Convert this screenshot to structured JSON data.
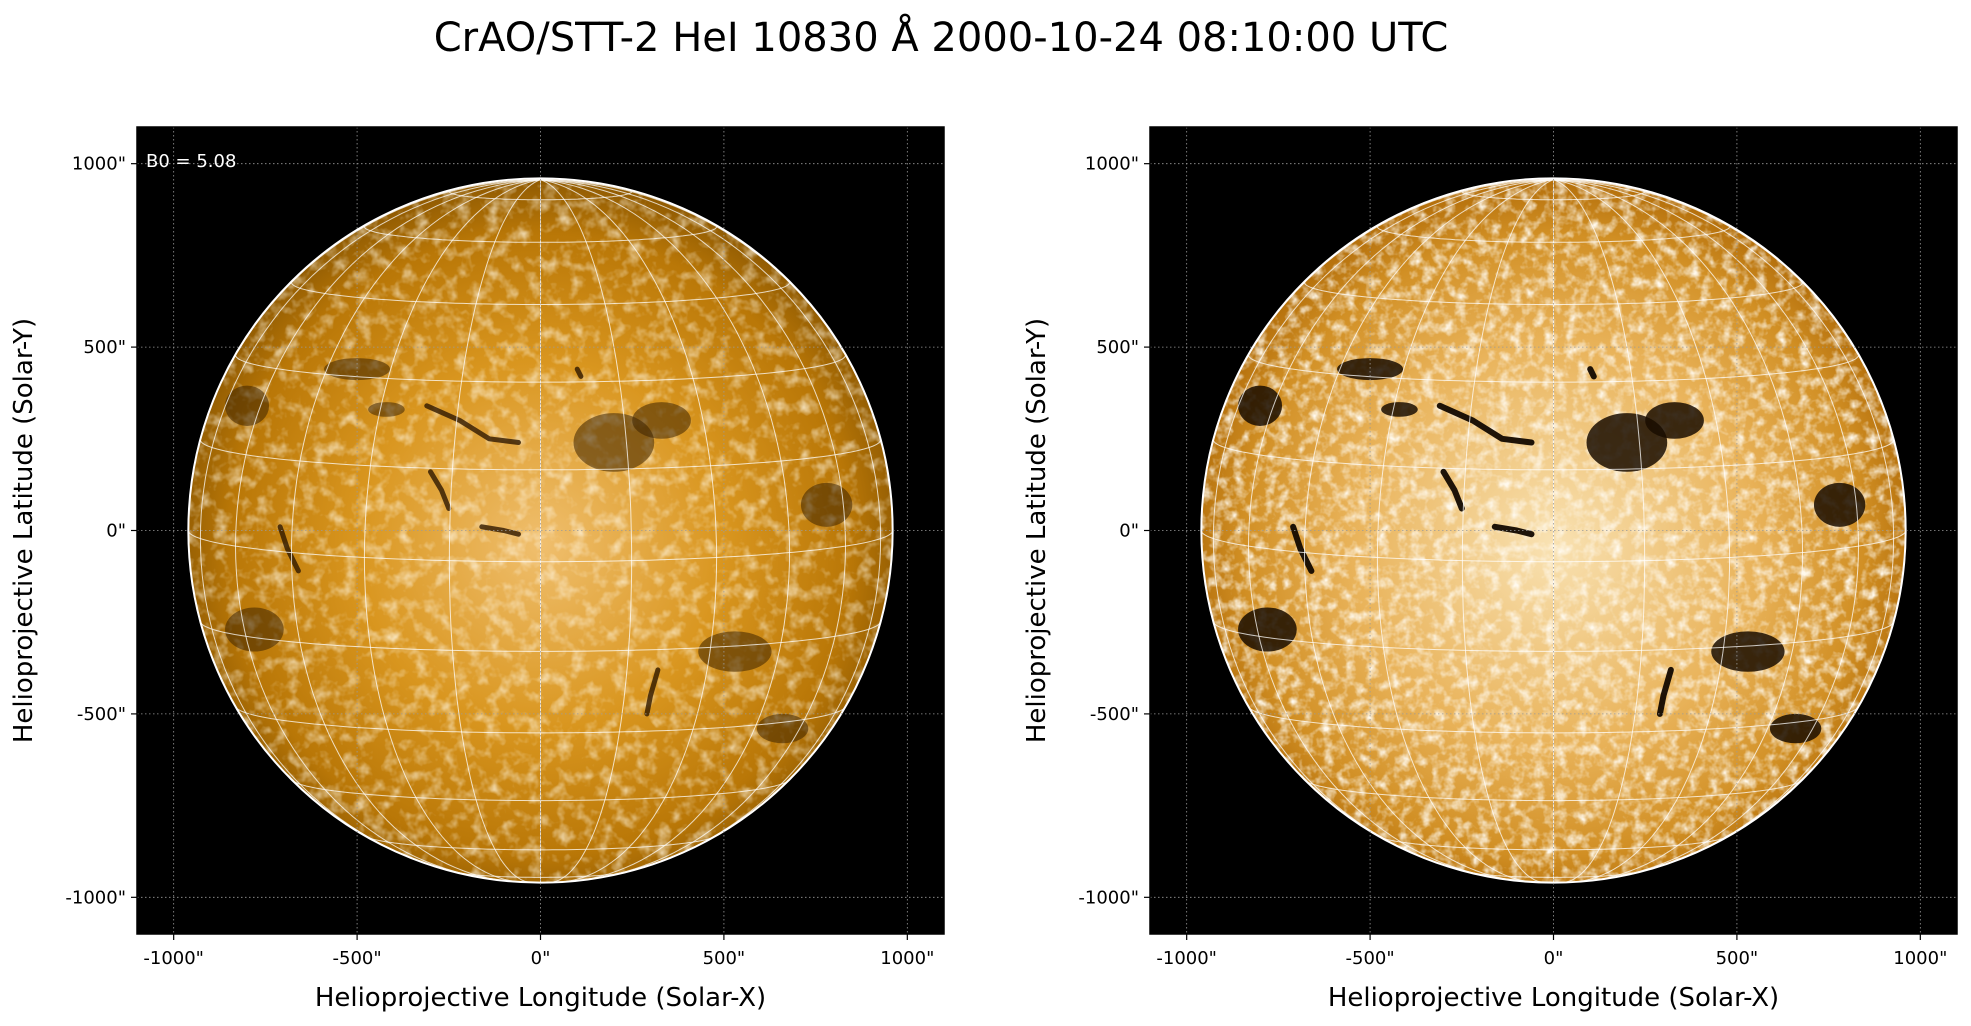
{
  "title": "CrAO/STT-2 HeI 10830 Å 2000-10-24 08:10:00 UTC",
  "colors": {
    "background": "#000000",
    "disk_mid": "#c8800c",
    "disk_light": "#fdebc6",
    "limb": "#ffffff"
  },
  "panels": [
    {
      "id": "left",
      "annotation": "B0 = 5.08",
      "contrast": "normal",
      "xlabel": "Helioprojective Longitude (Solar-X)",
      "ylabel": "Helioprojective Latitude (Solar-Y)",
      "xticks": [
        "-1000\"",
        "-500\"",
        "0\"",
        "500\"",
        "1000\""
      ],
      "yticks": [
        "1000\"",
        "500\"",
        "0\"",
        "-500\"",
        "-1000\""
      ]
    },
    {
      "id": "right",
      "annotation": "",
      "contrast": "enhanced",
      "xlabel": "Helioprojective Longitude (Solar-X)",
      "ylabel": "Helioprojective Latitude (Solar-Y)",
      "xticks": [
        "-1000\"",
        "-500\"",
        "0\"",
        "500\"",
        "1000\""
      ],
      "yticks": [
        "1000\"",
        "500\"",
        "0\"",
        "-500\"",
        "-1000\""
      ]
    }
  ],
  "axes": {
    "xlim": [
      -1100,
      1100
    ],
    "ylim": [
      -1100,
      1100
    ],
    "tick_values": [
      -1000,
      -500,
      0,
      500,
      1000
    ],
    "solar_radius_arcsec": 960
  },
  "features": {
    "filaments": [
      {
        "name": "filament-north-center",
        "points": [
          [
            -310,
            340
          ],
          [
            -220,
            300
          ],
          [
            -140,
            250
          ],
          [
            -60,
            240
          ]
        ]
      },
      {
        "name": "filament-east",
        "points": [
          [
            -300,
            160
          ],
          [
            -270,
            110
          ],
          [
            -250,
            60
          ]
        ]
      },
      {
        "name": "filament-southeast-limb",
        "points": [
          [
            -710,
            10
          ],
          [
            -690,
            -50
          ],
          [
            -660,
            -110
          ]
        ]
      },
      {
        "name": "filament-south",
        "points": [
          [
            320,
            -380
          ],
          [
            300,
            -450
          ],
          [
            290,
            -500
          ]
        ]
      },
      {
        "name": "filament-center-south",
        "points": [
          [
            -160,
            10
          ],
          [
            -100,
            0
          ],
          [
            -60,
            -10
          ]
        ]
      },
      {
        "name": "filament-north-small",
        "points": [
          [
            100,
            440
          ],
          [
            110,
            420
          ]
        ]
      }
    ],
    "dark_regions": [
      {
        "name": "coronal-hole-north",
        "cx": 200,
        "cy": 240,
        "rx": 110,
        "ry": 80
      },
      {
        "name": "dark-region-northwest",
        "cx": 330,
        "cy": 300,
        "rx": 80,
        "ry": 50
      },
      {
        "name": "dark-region-east-limb",
        "cx": -800,
        "cy": 340,
        "rx": 60,
        "ry": 55
      },
      {
        "name": "dark-region-northeast",
        "cx": -500,
        "cy": 440,
        "rx": 90,
        "ry": 30
      },
      {
        "name": "dark-region-west-limb",
        "cx": 780,
        "cy": 70,
        "rx": 70,
        "ry": 60
      },
      {
        "name": "dark-region-southeast",
        "cx": -780,
        "cy": -270,
        "rx": 80,
        "ry": 60
      },
      {
        "name": "dark-region-south",
        "cx": 530,
        "cy": -330,
        "rx": 100,
        "ry": 55
      },
      {
        "name": "dark-region-southwest",
        "cx": 660,
        "cy": -540,
        "rx": 70,
        "ry": 40
      },
      {
        "name": "dark-region-east-mid",
        "cx": -420,
        "cy": 330,
        "rx": 50,
        "ry": 20
      }
    ]
  }
}
